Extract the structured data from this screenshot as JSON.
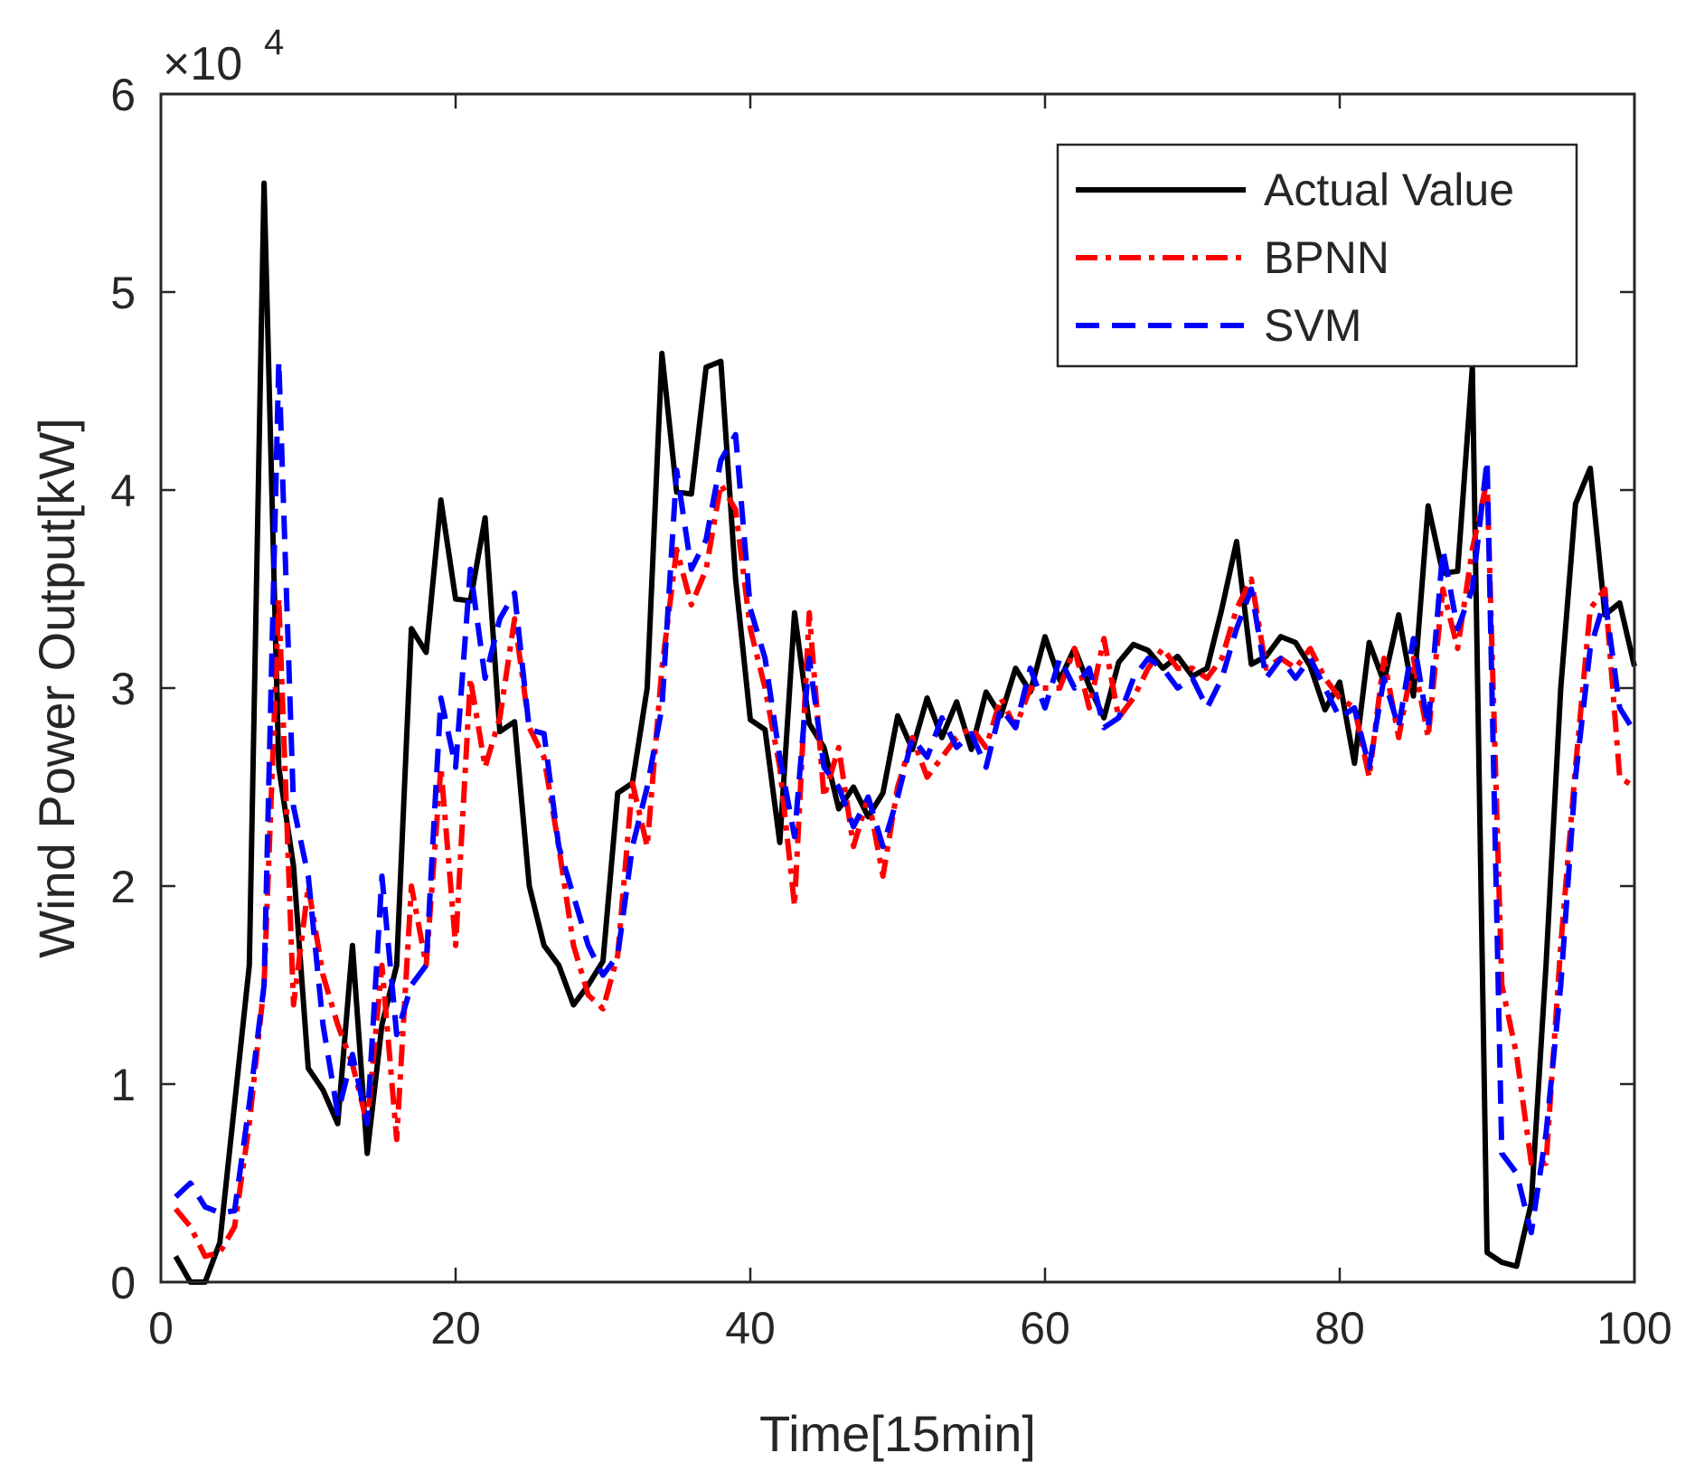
{
  "chart_data": {
    "type": "line",
    "title": "",
    "xlabel": "Time[15min]",
    "ylabel": "Wind Power Output[kW]",
    "xlim": [
      0,
      100
    ],
    "ylim": [
      0,
      60000
    ],
    "x_ticks": [
      0,
      20,
      40,
      60,
      80,
      100
    ],
    "y_ticks": [
      0,
      1,
      2,
      3,
      4,
      5,
      6
    ],
    "y_multiplier": {
      "base": "×10",
      "exponent": "4"
    },
    "grid": false,
    "legend_position": "top-right",
    "series": [
      {
        "name": "Actual Value",
        "color": "#000000",
        "style": "solid",
        "values": [
          1300,
          0,
          0,
          2000,
          9000,
          16000,
          55500,
          26000,
          21000,
          10800,
          9700,
          8000,
          17000,
          6500,
          13000,
          16000,
          33000,
          31800,
          39500,
          34500,
          34400,
          38600,
          27800,
          28300,
          20000,
          17000,
          16000,
          14000,
          15000,
          16200,
          24700,
          25200,
          30000,
          46900,
          39900,
          39800,
          46200,
          46500,
          35500,
          28400,
          27900,
          22200,
          33800,
          28200,
          27000,
          23900,
          25000,
          23500,
          24700,
          28600,
          26900,
          29500,
          27500,
          29300,
          26900,
          29800,
          28600,
          31000,
          29800,
          32600,
          30400,
          32000,
          30100,
          28500,
          31300,
          32200,
          31900,
          31000,
          31600,
          30600,
          31000,
          34000,
          37400,
          31200,
          31600,
          32600,
          32300,
          31100,
          28900,
          30300,
          26200,
          32300,
          30300,
          33700,
          29600,
          39200,
          35800,
          35900,
          46200,
          1500,
          1000,
          800,
          4000,
          16000,
          30000,
          39300,
          41100,
          33700,
          34300,
          31100
        ]
      },
      {
        "name": "BPNN",
        "color": "#ff0000",
        "style": "dashdot",
        "values": [
          3700,
          2800,
          1300,
          1500,
          2800,
          8000,
          15000,
          34500,
          14000,
          20000,
          15500,
          13000,
          11000,
          8000,
          16000,
          7200,
          20000,
          16000,
          26000,
          17000,
          30500,
          26000,
          28500,
          33500,
          28000,
          26500,
          22000,
          17000,
          14500,
          13800,
          16500,
          25200,
          22000,
          31000,
          37000,
          34200,
          36000,
          40300,
          39000,
          33000,
          30000,
          26000,
          19000,
          33800,
          24500,
          27000,
          22000,
          24500,
          20500,
          25000,
          27500,
          25500,
          26500,
          27500,
          28000,
          27000,
          29500,
          28000,
          30000,
          30000,
          30000,
          32000,
          29000,
          32500,
          28500,
          29500,
          31000,
          32000,
          31000,
          31000,
          30500,
          31500,
          34000,
          35500,
          31000,
          31500,
          31000,
          32000,
          30500,
          29500,
          29000,
          25500,
          31500,
          27500,
          31500,
          27500,
          35000,
          32000,
          37000,
          40500,
          15000,
          11500,
          6000,
          6000,
          17000,
          26000,
          34000,
          35000,
          25500,
          25000
        ]
      },
      {
        "name": "SVM",
        "color": "#0000ff",
        "style": "dashed",
        "values": [
          4300,
          5000,
          3800,
          3500,
          3600,
          9000,
          15000,
          46500,
          24000,
          20500,
          13000,
          8500,
          11500,
          8000,
          20500,
          12500,
          15000,
          16000,
          29500,
          26000,
          36000,
          30500,
          33500,
          34800,
          27900,
          27700,
          22000,
          19500,
          17000,
          15500,
          16500,
          22000,
          25000,
          29000,
          41000,
          36000,
          37500,
          41500,
          42800,
          34000,
          31500,
          26500,
          22500,
          31500,
          26000,
          25000,
          23000,
          24500,
          22000,
          24500,
          27500,
          26500,
          28500,
          27000,
          27700,
          26000,
          29000,
          28000,
          31000,
          29000,
          31500,
          30000,
          31000,
          28000,
          28500,
          30500,
          31500,
          31000,
          30000,
          30500,
          29000,
          30500,
          33000,
          35000,
          30500,
          31500,
          30500,
          31500,
          30000,
          28500,
          29000,
          26000,
          30500,
          28000,
          32500,
          28000,
          37000,
          33000,
          35000,
          41500,
          6500,
          5500,
          2500,
          7500,
          15000,
          25500,
          32000,
          34500,
          29000,
          27800
        ]
      }
    ]
  }
}
